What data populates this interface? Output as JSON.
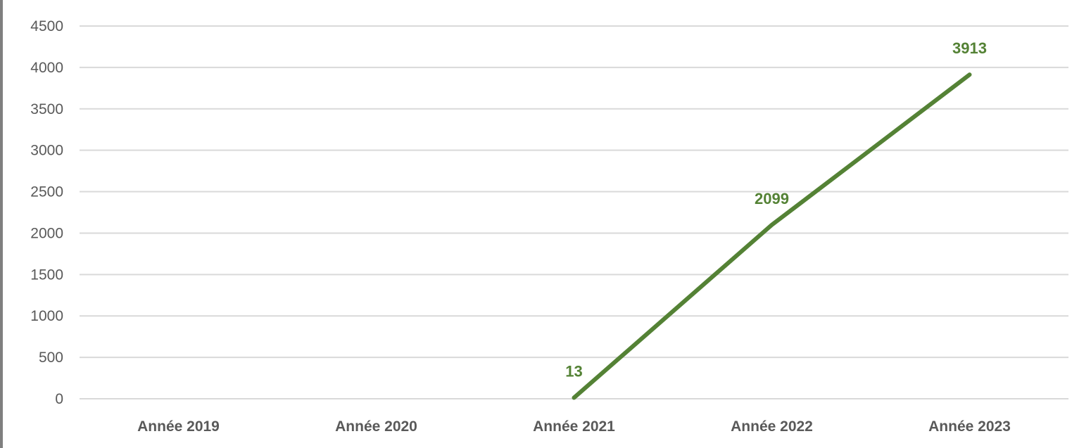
{
  "chart_data": {
    "type": "line",
    "title": "",
    "xlabel": "",
    "ylabel": "",
    "categories": [
      "Année 2019",
      "Année 2020",
      "Année 2021",
      "Année 2022",
      "Année 2023"
    ],
    "series": [
      {
        "values": [
          null,
          null,
          13,
          2099,
          3913
        ],
        "color": "#548235"
      }
    ],
    "ylim": [
      0,
      4500
    ],
    "yticks": [
      0,
      500,
      1000,
      1500,
      2000,
      2500,
      3000,
      3500,
      4000,
      4500
    ],
    "ytick_labels": [
      "0",
      "500",
      "1000",
      "1500",
      "2000",
      "2500",
      "3000",
      "3500",
      "4000",
      "4500"
    ],
    "data_labels": [
      "13",
      "2099",
      "3913"
    ],
    "grid": true,
    "legend": "none",
    "colors": {
      "line": "#548235",
      "grid": "#d9d9d9",
      "axis_text": "#595959"
    }
  }
}
